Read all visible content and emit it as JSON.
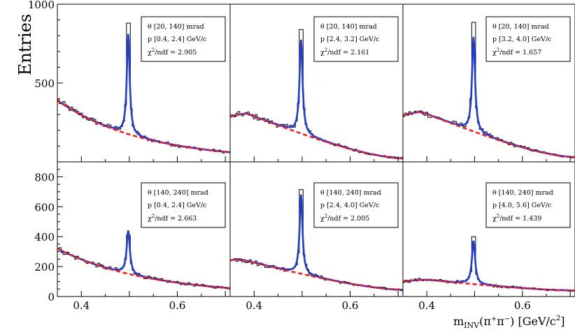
{
  "figure": {
    "ylabel": "Entries",
    "xlabel": "m_INV(π⁺π⁻) [GeV/c²]",
    "xlabel_parts": {
      "m": "m",
      "sub": "INV",
      "open": "(π",
      "pip": "+",
      "pi": "π",
      "pim": "−",
      "close": ") [GeV/c",
      "exp": "2",
      "end": "]"
    }
  },
  "chart_data": [
    {
      "type": "histogram",
      "theta": "θ [20, 140] mrad",
      "p": "p [0.4, 2.4] GeV/c",
      "chi2": "χ²/ndf = 2.905",
      "chi_label": "χ",
      "chi_exp": "2",
      "chi_rest": "/ndf = 2.905",
      "xlim": [
        0.35,
        0.71
      ],
      "ylim": [
        0,
        1000
      ],
      "yticks": [
        500,
        1000
      ],
      "xticks": [
        0.4,
        0.6
      ],
      "xtick_labels": [
        "0.4",
        "0.6"
      ],
      "background": {
        "a": 380,
        "b": 5.6
      },
      "peak": {
        "mass": 0.4977,
        "height": 635,
        "width": 0.0036
      },
      "histogram_top": 880
    },
    {
      "type": "histogram",
      "theta": "θ [20, 140] mrad",
      "p": "p [2.4, 3.2] GeV/c",
      "chi2": "χ²/ndf = 2.161",
      "chi_label": "χ",
      "chi_exp": "2",
      "chi_rest": "/ndf = 2.161",
      "xlim": [
        0.35,
        0.71
      ],
      "ylim": [
        0,
        1000
      ],
      "xticks": [
        0.4,
        0.6
      ],
      "xtick_labels": [
        "0.4",
        "0.6"
      ],
      "background": {
        "a": 0,
        "b": 0,
        "bump": {
          "start": 285,
          "peakx": 0.385,
          "peak": 305,
          "end": 22
        }
      },
      "peak": {
        "mass": 0.4977,
        "height": 595,
        "width": 0.0038
      },
      "histogram_top": 840
    },
    {
      "type": "histogram",
      "theta": "θ [20, 140] mrad",
      "p": "p [3.2, 4.0] GeV/c",
      "chi2": "χ²/ndf = 1.657",
      "chi_label": "χ",
      "chi_exp": "2",
      "chi_rest": "/ndf = 1.657",
      "xlim": [
        0.35,
        0.71
      ],
      "ylim": [
        0,
        1000
      ],
      "xticks": [
        0.4,
        0.6
      ],
      "xtick_labels": [
        "0.4",
        "0.6"
      ],
      "background": {
        "a": 0,
        "b": 0,
        "bump": {
          "start": 295,
          "peakx": 0.39,
          "peak": 315,
          "end": 30
        }
      },
      "peak": {
        "mass": 0.4977,
        "height": 600,
        "width": 0.0038
      },
      "histogram_top": 885
    },
    {
      "type": "histogram",
      "theta": "θ [140, 240] mrad",
      "p": "p [0.4, 2.4] GeV/c",
      "chi2": "χ²/ndf = 2.663",
      "chi_label": "χ",
      "chi_exp": "2",
      "chi_rest": "/ndf = 2.663",
      "xlim": [
        0.35,
        0.71
      ],
      "ylim": [
        0,
        900
      ],
      "yticks": [
        0,
        200,
        400,
        600,
        800
      ],
      "xticks": [
        0.4,
        0.6
      ],
      "xtick_labels": [
        "0.4",
        "0.6"
      ],
      "background": {
        "a": 310,
        "b": 5.3
      },
      "peak": {
        "mass": 0.4977,
        "height": 290,
        "width": 0.004
      },
      "histogram_top": 410
    },
    {
      "type": "histogram",
      "theta": "θ [140, 240] mrad",
      "p": "p [2.4, 4.0] GeV/c",
      "chi2": "χ²/ndf = 2.005",
      "chi_label": "χ",
      "chi_exp": "2",
      "chi_rest": "/ndf = 2.005",
      "xlim": [
        0.35,
        0.71
      ],
      "ylim": [
        0,
        900
      ],
      "xticks": [
        0.4,
        0.6
      ],
      "xtick_labels": [
        "0.4",
        "0.6"
      ],
      "background": {
        "a": 0,
        "b": 0,
        "bump": {
          "start": 240,
          "peakx": 0.37,
          "peak": 250,
          "end": 45
        }
      },
      "peak": {
        "mass": 0.4977,
        "height": 530,
        "width": 0.0036
      },
      "histogram_top": 715
    },
    {
      "type": "histogram",
      "theta": "θ [140, 240] mrad",
      "p": "p [4.0, 5.6] GeV/c",
      "chi2": "χ²/ndf = 1.439",
      "chi_label": "χ",
      "chi_exp": "2",
      "chi_rest": "/ndf = 1.439",
      "xlim": [
        0.35,
        0.71
      ],
      "ylim": [
        0,
        900
      ],
      "xticks": [
        0.4,
        0.6
      ],
      "xtick_labels": [
        "0.4",
        "0.6"
      ],
      "background": {
        "a": 0,
        "b": 0,
        "bump": {
          "start": 100,
          "peakx": 0.4,
          "peak": 112,
          "end": 40
        }
      },
      "peak": {
        "mass": 0.4977,
        "height": 290,
        "width": 0.004
      },
      "histogram_top": 400
    }
  ],
  "colors": {
    "fit": "#1f3bd6",
    "background": "#ff1a1a",
    "data": "#000000",
    "frame": "#000000"
  }
}
